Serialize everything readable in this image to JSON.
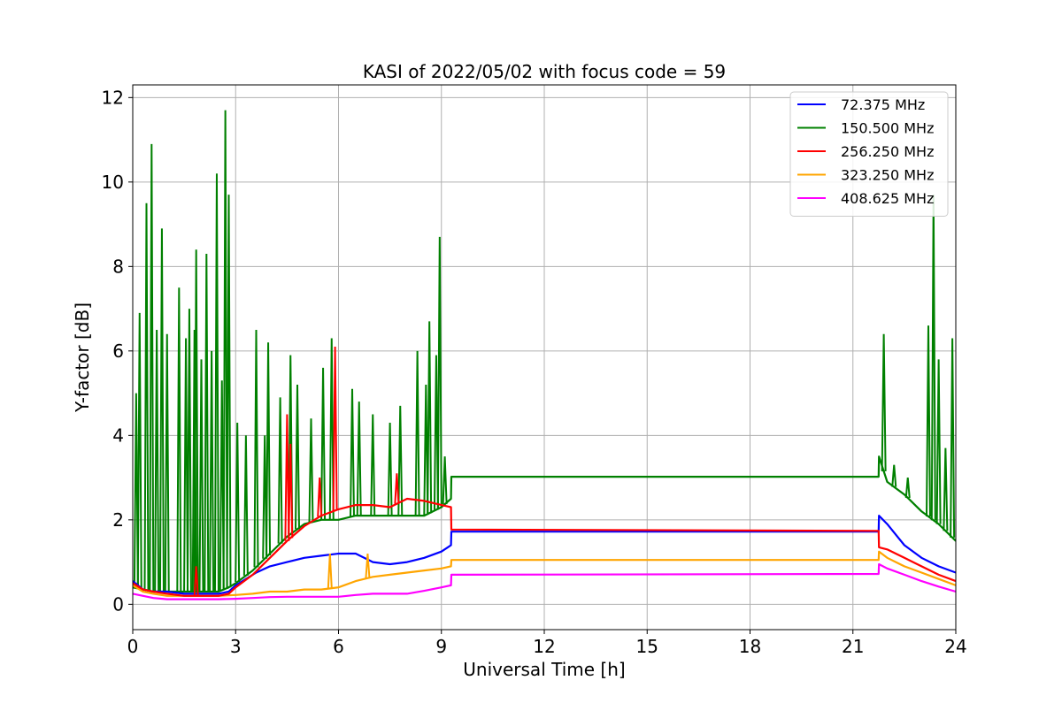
{
  "chart_data": {
    "type": "line",
    "title": "KASI of 2022/05/02 with focus code = 59",
    "xlabel": "Universal Time [h]",
    "ylabel": "Y-factor [dB]",
    "xlim": [
      0,
      24
    ],
    "ylim": [
      -0.6,
      12.3
    ],
    "xticks": [
      0,
      3,
      6,
      9,
      12,
      15,
      18,
      21,
      24
    ],
    "yticks": [
      0,
      2,
      4,
      6,
      8,
      10,
      12
    ],
    "grid": true,
    "legend_position": "top-right",
    "series": [
      {
        "name": " 72.375 MHz",
        "color": "#0000ff",
        "x": [
          0,
          0.3,
          0.6,
          1,
          1.5,
          2,
          2.5,
          2.8,
          3,
          3.3,
          3.6,
          4,
          4.5,
          5,
          5.5,
          6,
          6.5,
          7,
          7.5,
          8,
          8.5,
          9,
          9.28,
          9.29,
          21.75,
          21.76,
          22,
          22.5,
          23,
          23.5,
          24
        ],
        "y": [
          0.55,
          0.35,
          0.3,
          0.3,
          0.25,
          0.25,
          0.25,
          0.3,
          0.45,
          0.6,
          0.75,
          0.9,
          1.0,
          1.1,
          1.15,
          1.2,
          1.2,
          1.0,
          0.95,
          1.0,
          1.1,
          1.25,
          1.4,
          1.72,
          1.72,
          2.1,
          1.9,
          1.4,
          1.1,
          0.9,
          0.75
        ]
      },
      {
        "name": "150.500 MHz",
        "color": "#008000",
        "x": [
          0,
          0.3,
          0.6,
          1,
          1.5,
          2,
          2.5,
          2.8,
          3,
          3.5,
          4,
          4.5,
          5,
          5.5,
          6,
          6.5,
          7,
          7.5,
          8,
          8.5,
          9,
          9.28,
          9.29,
          21.75,
          21.76,
          22,
          22.5,
          23,
          23.5,
          24
        ],
        "y": [
          0.4,
          0.35,
          0.3,
          0.3,
          0.3,
          0.3,
          0.3,
          0.4,
          0.5,
          0.8,
          1.2,
          1.6,
          1.9,
          2.0,
          2.0,
          2.1,
          2.1,
          2.1,
          2.1,
          2.1,
          2.3,
          2.5,
          3.02,
          3.02,
          3.5,
          2.9,
          2.6,
          2.2,
          1.9,
          1.5
        ],
        "spikes": [
          {
            "x": 0.1,
            "y": 5.0
          },
          {
            "x": 0.2,
            "y": 6.9
          },
          {
            "x": 0.4,
            "y": 9.5
          },
          {
            "x": 0.55,
            "y": 10.9
          },
          {
            "x": 0.7,
            "y": 6.5
          },
          {
            "x": 0.85,
            "y": 8.9
          },
          {
            "x": 1.0,
            "y": 6.4
          },
          {
            "x": 1.35,
            "y": 7.5
          },
          {
            "x": 1.55,
            "y": 6.3
          },
          {
            "x": 1.65,
            "y": 7.0
          },
          {
            "x": 1.8,
            "y": 6.5
          },
          {
            "x": 1.85,
            "y": 8.4
          },
          {
            "x": 2.0,
            "y": 5.8
          },
          {
            "x": 2.15,
            "y": 8.3
          },
          {
            "x": 2.3,
            "y": 6.0
          },
          {
            "x": 2.45,
            "y": 10.2
          },
          {
            "x": 2.6,
            "y": 5.3
          },
          {
            "x": 2.7,
            "y": 11.7
          },
          {
            "x": 2.8,
            "y": 9.7
          },
          {
            "x": 3.05,
            "y": 4.3
          },
          {
            "x": 3.3,
            "y": 4.0
          },
          {
            "x": 3.6,
            "y": 6.5
          },
          {
            "x": 3.85,
            "y": 4.0
          },
          {
            "x": 3.95,
            "y": 6.2
          },
          {
            "x": 4.3,
            "y": 4.9
          },
          {
            "x": 4.6,
            "y": 5.9
          },
          {
            "x": 4.8,
            "y": 5.2
          },
          {
            "x": 5.2,
            "y": 4.4
          },
          {
            "x": 5.55,
            "y": 5.6
          },
          {
            "x": 5.8,
            "y": 6.3
          },
          {
            "x": 6.4,
            "y": 5.1
          },
          {
            "x": 6.6,
            "y": 4.8
          },
          {
            "x": 7.0,
            "y": 4.5
          },
          {
            "x": 7.5,
            "y": 4.3
          },
          {
            "x": 7.8,
            "y": 4.7
          },
          {
            "x": 8.3,
            "y": 6.0
          },
          {
            "x": 8.55,
            "y": 5.2
          },
          {
            "x": 8.65,
            "y": 6.7
          },
          {
            "x": 8.85,
            "y": 5.9
          },
          {
            "x": 8.95,
            "y": 8.7
          },
          {
            "x": 9.1,
            "y": 3.5
          },
          {
            "x": 21.9,
            "y": 6.4
          },
          {
            "x": 22.2,
            "y": 3.3
          },
          {
            "x": 22.6,
            "y": 3.0
          },
          {
            "x": 23.2,
            "y": 6.6
          },
          {
            "x": 23.35,
            "y": 9.7
          },
          {
            "x": 23.5,
            "y": 5.8
          },
          {
            "x": 23.7,
            "y": 3.7
          },
          {
            "x": 23.9,
            "y": 6.3
          }
        ]
      },
      {
        "name": "256.250 MHz",
        "color": "#ff0000",
        "x": [
          0,
          0.3,
          0.6,
          1,
          1.5,
          2,
          2.5,
          2.8,
          3,
          3.5,
          4,
          4.5,
          5,
          5.5,
          6,
          6.5,
          7,
          7.5,
          8,
          8.5,
          9,
          9.28,
          9.29,
          21.75,
          21.76,
          22,
          22.5,
          23,
          23.5,
          24
        ],
        "y": [
          0.5,
          0.35,
          0.3,
          0.25,
          0.2,
          0.2,
          0.2,
          0.25,
          0.4,
          0.7,
          1.1,
          1.5,
          1.85,
          2.1,
          2.25,
          2.35,
          2.35,
          2.3,
          2.5,
          2.45,
          2.35,
          2.3,
          1.77,
          1.74,
          1.35,
          1.3,
          1.1,
          0.9,
          0.7,
          0.55
        ],
        "spikes": [
          {
            "x": 1.85,
            "y": 0.9
          },
          {
            "x": 4.5,
            "y": 4.5
          },
          {
            "x": 4.6,
            "y": 3.8
          },
          {
            "x": 5.9,
            "y": 6.1
          },
          {
            "x": 5.45,
            "y": 3.0
          },
          {
            "x": 7.7,
            "y": 3.1
          }
        ]
      },
      {
        "name": "323.250 MHz",
        "color": "#ffa500",
        "x": [
          0,
          0.3,
          0.6,
          1,
          1.5,
          2,
          2.5,
          3,
          3.5,
          4,
          4.5,
          5,
          5.5,
          6,
          6.5,
          7,
          7.5,
          8,
          8.5,
          9,
          9.28,
          9.29,
          21.75,
          21.76,
          22,
          22.5,
          23,
          23.5,
          24
        ],
        "y": [
          0.45,
          0.3,
          0.25,
          0.2,
          0.2,
          0.2,
          0.2,
          0.22,
          0.25,
          0.3,
          0.3,
          0.35,
          0.35,
          0.4,
          0.55,
          0.65,
          0.7,
          0.75,
          0.8,
          0.85,
          0.9,
          1.05,
          1.05,
          1.25,
          1.1,
          0.9,
          0.75,
          0.6,
          0.45
        ],
        "spikes": [
          {
            "x": 5.75,
            "y": 1.2
          },
          {
            "x": 6.85,
            "y": 1.2
          }
        ]
      },
      {
        "name": "408.625 MHz",
        "color": "#ff00ff",
        "x": [
          0,
          0.3,
          0.6,
          1,
          1.5,
          2,
          2.5,
          3,
          3.5,
          4,
          4.5,
          5,
          5.5,
          6,
          6.5,
          7,
          7.5,
          8,
          8.5,
          9,
          9.28,
          9.29,
          21.75,
          21.76,
          22,
          22.5,
          23,
          23.5,
          24
        ],
        "y": [
          0.25,
          0.2,
          0.15,
          0.12,
          0.12,
          0.12,
          0.12,
          0.13,
          0.15,
          0.17,
          0.18,
          0.18,
          0.18,
          0.18,
          0.22,
          0.25,
          0.25,
          0.25,
          0.32,
          0.4,
          0.45,
          0.7,
          0.72,
          0.95,
          0.85,
          0.7,
          0.55,
          0.42,
          0.3
        ]
      }
    ]
  }
}
